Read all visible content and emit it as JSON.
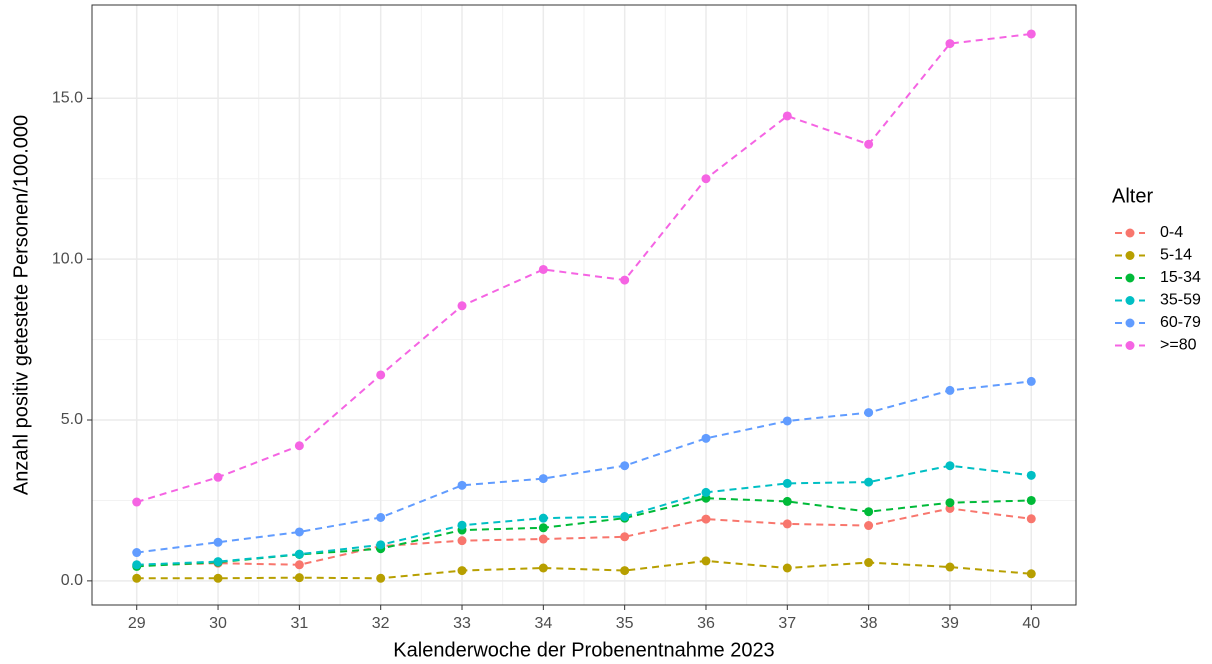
{
  "chart_data": {
    "type": "line",
    "x_label": "Kalenderwoche der Probenentnahme 2023",
    "y_label": "Anzahl positiv getestete Personen/100.000",
    "legend_title": "Alter",
    "legend_position": "right",
    "grid": true,
    "line_style": "dashed",
    "x": [
      29,
      30,
      31,
      32,
      33,
      34,
      35,
      36,
      37,
      38,
      39,
      40
    ],
    "xlim": [
      28.45,
      40.55
    ],
    "xticks": [
      29,
      30,
      31,
      32,
      33,
      34,
      35,
      36,
      37,
      38,
      39,
      40
    ],
    "ylim": [
      -0.75,
      17.9
    ],
    "yticks": [
      {
        "value": 0,
        "label": "0.0"
      },
      {
        "value": 5,
        "label": "5.0"
      },
      {
        "value": 10,
        "label": "10.0"
      },
      {
        "value": 15,
        "label": "15.0"
      }
    ],
    "series": [
      {
        "name": "0-4",
        "color": "#F8766D",
        "values": [
          0.48,
          0.55,
          0.5,
          1.08,
          1.25,
          1.3,
          1.37,
          1.92,
          1.77,
          1.72,
          2.25,
          1.93
        ]
      },
      {
        "name": "5-14",
        "color": "#B79F00",
        "values": [
          0.08,
          0.08,
          0.1,
          0.08,
          0.32,
          0.4,
          0.32,
          0.62,
          0.4,
          0.57,
          0.43,
          0.22
        ]
      },
      {
        "name": "15-34",
        "color": "#00BA38",
        "values": [
          0.45,
          0.58,
          0.82,
          1.0,
          1.58,
          1.65,
          1.95,
          2.57,
          2.47,
          2.15,
          2.43,
          2.5
        ]
      },
      {
        "name": "35-59",
        "color": "#00BFC4",
        "values": [
          0.5,
          0.6,
          0.83,
          1.12,
          1.73,
          1.95,
          2.0,
          2.75,
          3.03,
          3.07,
          3.58,
          3.28
        ]
      },
      {
        "name": "60-79",
        "color": "#619CFF",
        "values": [
          0.88,
          1.2,
          1.52,
          1.97,
          2.97,
          3.18,
          3.58,
          4.43,
          4.97,
          5.23,
          5.92,
          6.2
        ]
      },
      {
        "name": ">=80",
        "color": "#F564E3",
        "values": [
          2.45,
          3.22,
          4.2,
          6.4,
          8.55,
          9.68,
          9.35,
          12.5,
          14.45,
          13.57,
          16.7,
          17.0
        ]
      }
    ]
  }
}
